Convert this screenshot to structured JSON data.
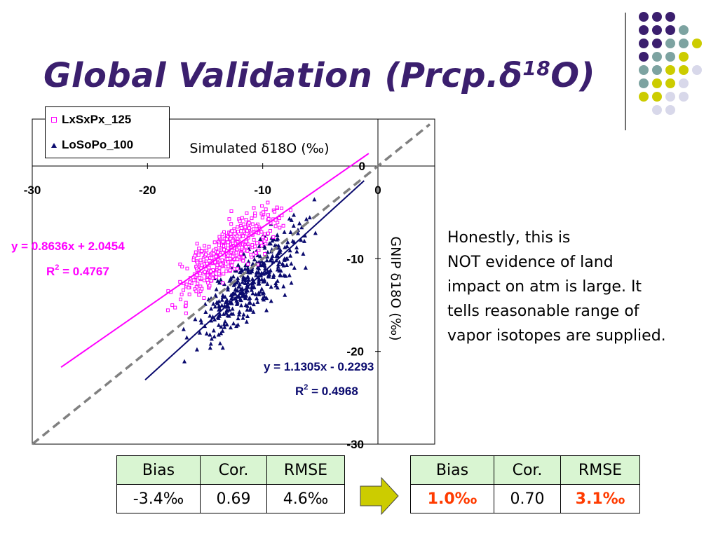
{
  "slide": {
    "title": "Global Validation (Prcp.δ",
    "title_sup": "18",
    "title_end": "O)"
  },
  "legend": [
    {
      "label": "LxSxPx_125",
      "marker": "square",
      "color": "#ff00ff"
    },
    {
      "label": "LoSoPo_100",
      "marker": "triangle",
      "color": "#0a0a6e"
    }
  ],
  "chart_data": {
    "type": "scatter",
    "xlabel": "Simulated δ18O (‰)",
    "ylabel": "GNIP δ18O (‰)",
    "x_ticks": [
      "-30",
      "-20",
      "-10",
      "0"
    ],
    "y_ticks": [
      "-10",
      "-20",
      "-30"
    ],
    "y_tick_zero": "0",
    "xlim": [
      -30,
      5
    ],
    "ylim": [
      -30,
      4
    ],
    "series": [
      {
        "name": "LxSxPx_125",
        "color": "#ff00ff",
        "marker": "square",
        "fit": {
          "slope": 0.8636,
          "intercept": 2.0454,
          "x_range": [
            -27.5,
            -0.8
          ]
        },
        "equation": "y = 0.8636x + 2.0454",
        "r2_label": "R",
        "r2_sup": "2",
        "r2_value": " = 0.4767"
      },
      {
        "name": "LoSoPo_100",
        "color": "#0a0a6e",
        "marker": "triangle",
        "fit": {
          "slope": 1.1305,
          "intercept": -0.2293,
          "x_range": [
            -20.2,
            -1.2
          ]
        },
        "equation": "y = 1.1305x - 0.2293",
        "r2_label": "R",
        "r2_sup": "2",
        "r2_value": " = 0.4968"
      }
    ],
    "one_to_one_line": {
      "color": "#808080",
      "style": "dashed"
    }
  },
  "note_lines": [
    "Honestly, this is",
    "NOT evidence of land",
    "impact on atm is large. It",
    "tells reasonable range of",
    "vapor isotopes are supplied."
  ],
  "tables": [
    {
      "headers": [
        "Bias",
        "Cor.",
        "RMSE"
      ],
      "values": [
        "-3.4‰",
        "0.69",
        "4.6‰"
      ]
    },
    {
      "headers": [
        "Bias",
        "Cor.",
        "RMSE"
      ],
      "values": [
        "1.0‰",
        "0.70",
        "3.1‰"
      ]
    }
  ],
  "colors": {
    "title": "#3b1f6e",
    "table_header": "#d9f5d2",
    "highlight": "#ff3b00",
    "arrow_fill": "#cccc00",
    "dot_purple": "#3b1f6e",
    "dot_teal": "#7da3a1",
    "dot_yellow": "#cccc00",
    "dot_lavender": "#d8d8ea"
  }
}
